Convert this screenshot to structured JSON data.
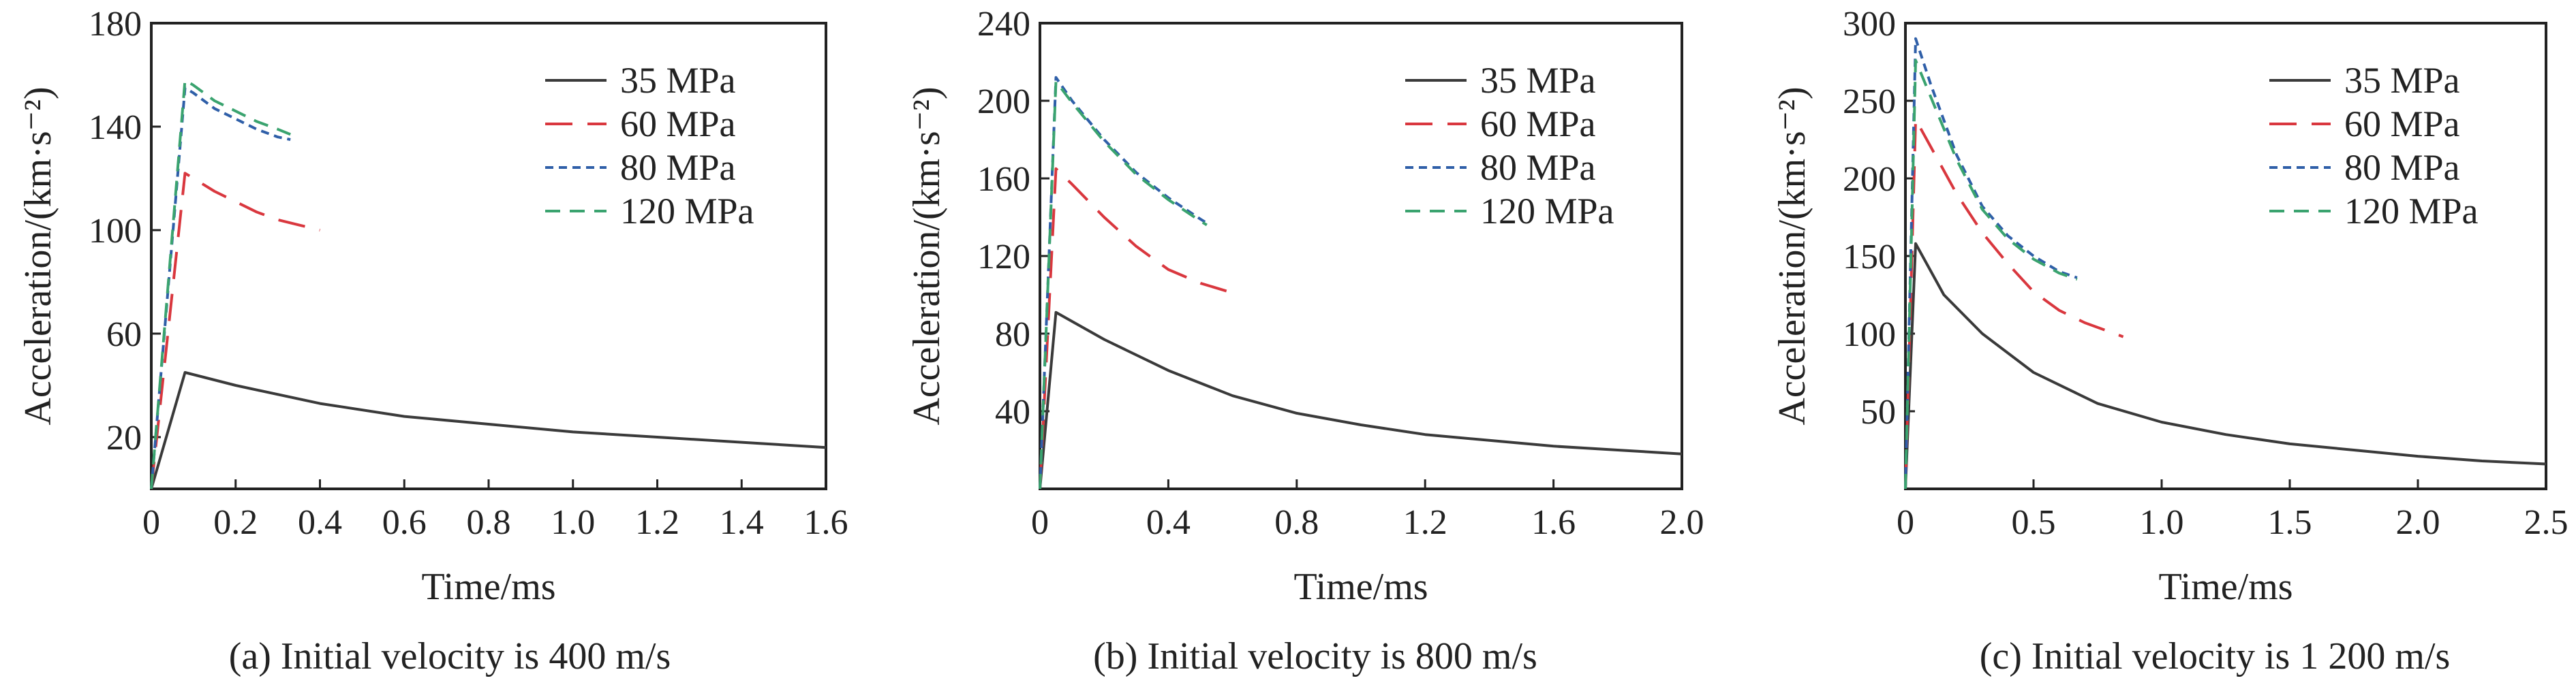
{
  "colors": {
    "35 MPa": "#3a3a3a",
    "60 MPa": "#d9373e",
    "80 MPa": "#2f5fa8",
    "120 MPa": "#3aa36f"
  },
  "chart_data": [
    {
      "type": "line",
      "caption": "(a) Initial velocity is 400 m/s",
      "xlabel": "Time/ms",
      "ylabel": "Acceleration/(km·s⁻²)",
      "xlim": [
        0,
        1.6
      ],
      "ylim": [
        0,
        180
      ],
      "xticks": [
        "0",
        "0.2",
        "0.4",
        "0.6",
        "0.8",
        "1.0",
        "1.2",
        "1.4",
        "1.6"
      ],
      "xtick_values": [
        0,
        0.2,
        0.4,
        0.6,
        0.8,
        1.0,
        1.2,
        1.4,
        1.6
      ],
      "yticks": [
        "20",
        "60",
        "100",
        "140",
        "180"
      ],
      "ytick_values": [
        20,
        60,
        100,
        140,
        180
      ],
      "legend_position": "top-right",
      "series": [
        {
          "name": "35 MPa",
          "dash": "solid",
          "x": [
            0,
            0.08,
            0.2,
            0.4,
            0.6,
            0.8,
            1.0,
            1.2,
            1.4,
            1.6
          ],
          "y": [
            0,
            45,
            40,
            33,
            28,
            25,
            22,
            20,
            18,
            16
          ]
        },
        {
          "name": "60 MPa",
          "dash": "long",
          "x": [
            0,
            0.08,
            0.1,
            0.15,
            0.2,
            0.25,
            0.3,
            0.35,
            0.4
          ],
          "y": [
            0,
            122,
            120,
            115,
            111,
            107,
            104,
            102,
            100
          ]
        },
        {
          "name": "80 MPa",
          "dash": "short",
          "x": [
            0,
            0.08,
            0.1,
            0.15,
            0.2,
            0.25,
            0.3,
            0.33
          ],
          "y": [
            0,
            155,
            153,
            147,
            143,
            139,
            136,
            135
          ]
        },
        {
          "name": "120 MPa",
          "dash": "medium",
          "x": [
            0,
            0.08,
            0.1,
            0.15,
            0.2,
            0.25,
            0.3,
            0.33
          ],
          "y": [
            0,
            158,
            156,
            150,
            146,
            142,
            139,
            137
          ]
        }
      ]
    },
    {
      "type": "line",
      "caption": "(b) Initial velocity is 800 m/s",
      "xlabel": "Time/ms",
      "ylabel": "Acceleration/(km·s⁻²)",
      "xlim": [
        0,
        2.0
      ],
      "ylim": [
        0,
        240
      ],
      "xticks": [
        "0",
        "0.4",
        "0.8",
        "1.2",
        "1.6",
        "2.0"
      ],
      "xtick_values": [
        0,
        0.4,
        0.8,
        1.2,
        1.6,
        2.0
      ],
      "yticks": [
        "40",
        "80",
        "120",
        "160",
        "200",
        "240"
      ],
      "ytick_values": [
        40,
        80,
        120,
        160,
        200,
        240
      ],
      "legend_position": "top-right",
      "series": [
        {
          "name": "35 MPa",
          "dash": "solid",
          "x": [
            0,
            0.05,
            0.2,
            0.4,
            0.6,
            0.8,
            1.0,
            1.2,
            1.4,
            1.6,
            1.8,
            2.0
          ],
          "y": [
            0,
            91,
            77,
            61,
            48,
            39,
            33,
            28,
            25,
            22,
            20,
            18
          ]
        },
        {
          "name": "60 MPa",
          "dash": "long",
          "x": [
            0,
            0.05,
            0.1,
            0.2,
            0.3,
            0.4,
            0.5,
            0.6
          ],
          "y": [
            0,
            165,
            157,
            140,
            125,
            113,
            106,
            101
          ]
        },
        {
          "name": "80 MPa",
          "dash": "short",
          "x": [
            0,
            0.05,
            0.1,
            0.2,
            0.3,
            0.4,
            0.5,
            0.52
          ],
          "y": [
            0,
            212,
            200,
            180,
            163,
            150,
            139,
            137
          ]
        },
        {
          "name": "120 MPa",
          "dash": "medium",
          "x": [
            0,
            0.05,
            0.1,
            0.2,
            0.3,
            0.4,
            0.5,
            0.52
          ],
          "y": [
            0,
            210,
            199,
            179,
            162,
            149,
            138,
            136
          ]
        }
      ]
    },
    {
      "type": "line",
      "caption": "(c) Initial velocity is 1 200 m/s",
      "xlabel": "Time/ms",
      "ylabel": "Acceleration/(km·s⁻²)",
      "xlim": [
        0,
        2.5
      ],
      "ylim": [
        0,
        300
      ],
      "xticks": [
        "0",
        "0.5",
        "1.0",
        "1.5",
        "2.0",
        "2.5"
      ],
      "xtick_values": [
        0,
        0.5,
        1.0,
        1.5,
        2.0,
        2.5
      ],
      "yticks": [
        "50",
        "100",
        "150",
        "200",
        "250",
        "300"
      ],
      "ytick_values": [
        50,
        100,
        150,
        200,
        250,
        300
      ],
      "legend_position": "top-right",
      "series": [
        {
          "name": "35 MPa",
          "dash": "solid",
          "x": [
            0,
            0.04,
            0.15,
            0.3,
            0.5,
            0.75,
            1.0,
            1.25,
            1.5,
            1.75,
            2.0,
            2.25,
            2.5
          ],
          "y": [
            0,
            158,
            125,
            100,
            75,
            55,
            43,
            35,
            29,
            25,
            21,
            18,
            16
          ]
        },
        {
          "name": "60 MPa",
          "dash": "long",
          "x": [
            0,
            0.04,
            0.1,
            0.2,
            0.3,
            0.4,
            0.5,
            0.6,
            0.7,
            0.8,
            0.85
          ],
          "y": [
            0,
            238,
            220,
            190,
            165,
            145,
            127,
            115,
            107,
            101,
            98
          ]
        },
        {
          "name": "80 MPa",
          "dash": "short",
          "x": [
            0,
            0.04,
            0.1,
            0.2,
            0.3,
            0.4,
            0.5,
            0.6,
            0.67
          ],
          "y": [
            0,
            290,
            260,
            215,
            182,
            163,
            150,
            140,
            136
          ]
        },
        {
          "name": "120 MPa",
          "dash": "medium",
          "x": [
            0,
            0.04,
            0.1,
            0.2,
            0.3,
            0.4,
            0.5,
            0.6,
            0.67
          ],
          "y": [
            0,
            276,
            252,
            212,
            180,
            161,
            148,
            139,
            135
          ]
        }
      ]
    }
  ]
}
